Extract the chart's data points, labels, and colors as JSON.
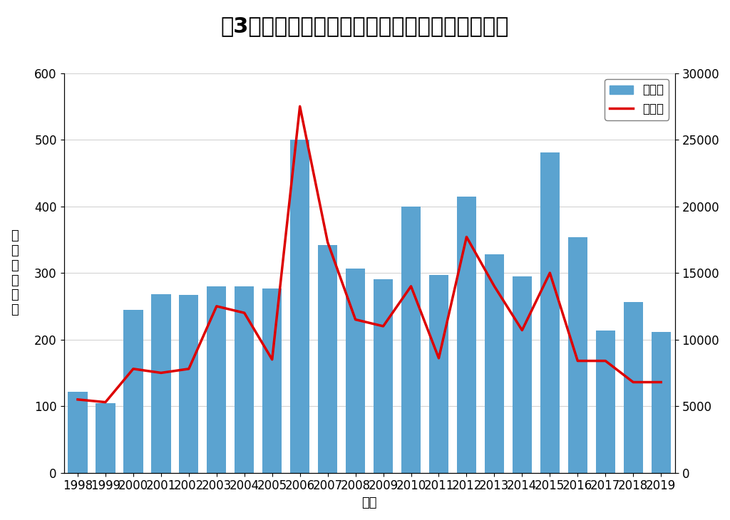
{
  "title": "図3．ノロウイルスによる集団発生件数と患者数",
  "years": [
    1998,
    1999,
    2000,
    2001,
    2002,
    2003,
    2004,
    2005,
    2006,
    2007,
    2008,
    2009,
    2010,
    2011,
    2012,
    2013,
    2014,
    2015,
    2016,
    2017,
    2018,
    2019
  ],
  "cases": [
    122,
    105,
    245,
    268,
    267,
    280,
    280,
    277,
    500,
    342,
    306,
    290,
    400,
    297,
    415,
    328,
    295,
    481,
    354,
    213,
    256,
    211
  ],
  "patients": [
    5500,
    5300,
    7800,
    7500,
    7800,
    12500,
    12000,
    8500,
    27500,
    17300,
    11500,
    11000,
    14000,
    8600,
    17700,
    14000,
    10700,
    15000,
    8400,
    8400,
    6800,
    6800
  ],
  "bar_color": "#5BA3D0",
  "line_color": "#DD0000",
  "ylabel_left": "事\n件\n数\n（\n件\n）",
  "xlabel": "年次",
  "ylim_left": [
    0,
    600
  ],
  "ylim_right": [
    0,
    30000
  ],
  "yticks_left": [
    0,
    100,
    200,
    300,
    400,
    500,
    600
  ],
  "yticks_right": [
    0,
    5000,
    10000,
    15000,
    20000,
    25000,
    30000
  ],
  "legend_cases": "事件数",
  "legend_patients": "患者数",
  "title_fontsize": 22,
  "axis_fontsize": 13,
  "tick_fontsize": 12,
  "legend_fontsize": 12
}
